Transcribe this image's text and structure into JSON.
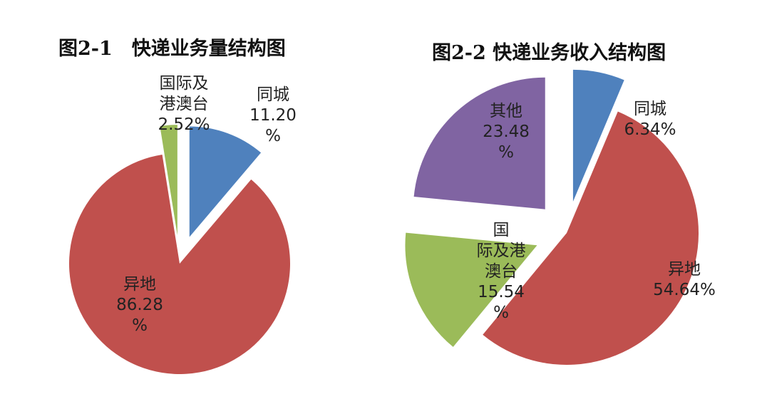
{
  "chart_data": [
    {
      "type": "pie",
      "title": "图2-1　快递业务量结构图",
      "slices": [
        {
          "label_lines": [
            "同城",
            "11.20",
            "%"
          ],
          "name": "同城",
          "value": 11.2,
          "color": "#4f81bd"
        },
        {
          "label_lines": [
            "异地",
            "86.28",
            "%"
          ],
          "name": "异地",
          "value": 86.28,
          "color": "#c0504d"
        },
        {
          "label_lines": [
            "国际及",
            "港澳台",
            "2.52%"
          ],
          "name": "国际及港澳台",
          "value": 2.52,
          "color": "#9bbb59"
        }
      ]
    },
    {
      "type": "pie",
      "title": "图2-2 快递业务收入结构图",
      "slices": [
        {
          "label_lines": [
            "同城",
            "6.34%"
          ],
          "name": "同城",
          "value": 6.34,
          "color": "#4f81bd"
        },
        {
          "label_lines": [
            "异地",
            "54.64%"
          ],
          "name": "异地",
          "value": 54.64,
          "color": "#c0504d"
        },
        {
          "label_lines": [
            "国",
            "际及港",
            "澳台",
            "15.54",
            "%"
          ],
          "name": "国际及港澳台",
          "value": 15.54,
          "color": "#9bbb59"
        },
        {
          "label_lines": [
            "其他",
            "23.48",
            "%"
          ],
          "name": "其他",
          "value": 23.48,
          "color": "#8064a2"
        }
      ]
    }
  ]
}
